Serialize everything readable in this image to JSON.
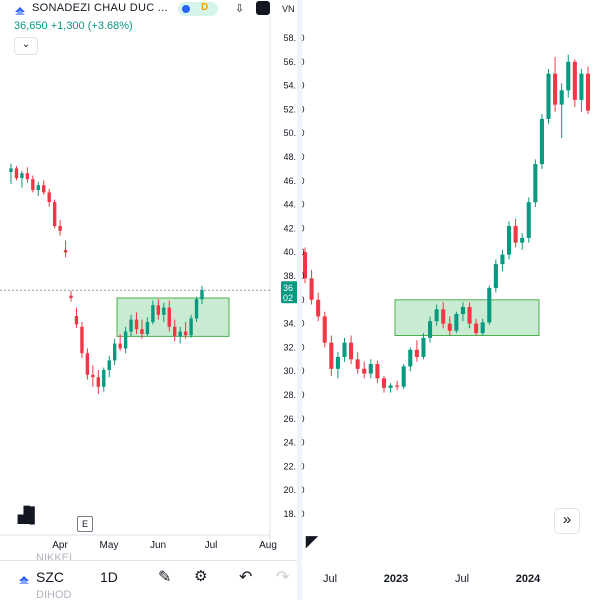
{
  "header": {
    "title": "SONADEZI CHAU DUC ...",
    "last": "36,650",
    "change": "+1,300 (+3.68%)",
    "chip_label": "D",
    "currency": "VN",
    "collapse_icon": "chevron-down-icon",
    "logo_icon": "stock-logo-icon",
    "download_icon": "download-icon",
    "market_icon": "market-status-icon"
  },
  "toolbar": {
    "symbol": "SZC",
    "interval": "1D",
    "draw_icon": "pencil-icon",
    "settings_icon": "sliders-icon",
    "undo_icon": "undo-icon",
    "redo_icon": "redo-icon"
  },
  "ghost_text": [
    "NIKKEI",
    "DIHOD"
  ],
  "markers": {
    "earnings": "E",
    "scroll_icon": "double-chevron-right-icon",
    "price_tag_top": "36",
    "price_tag_bottom": "02"
  },
  "colors": {
    "up": "#089981",
    "down": "#f23645",
    "zone_fill": "#b7e4c2",
    "zone_stroke": "#4caf50",
    "grid": "#e0e3eb"
  },
  "chart_data": [
    {
      "type": "candlestick",
      "title": "",
      "x_ticks": [
        "Apr",
        "May",
        "Jun",
        "Jul",
        "Aug"
      ],
      "y_ticks": [],
      "ylim": [
        18,
        59
      ],
      "zone": {
        "from": "May",
        "to": "Jul",
        "low": 32.8,
        "high": 36.0
      },
      "ohlc": [
        [
          46.5,
          47.2,
          45.5,
          46.8
        ],
        [
          46.8,
          47.0,
          45.8,
          46.0
        ],
        [
          46.0,
          46.6,
          45.2,
          46.4
        ],
        [
          46.4,
          46.9,
          45.6,
          45.9
        ],
        [
          45.9,
          46.2,
          44.8,
          45.0
        ],
        [
          45.0,
          45.7,
          44.5,
          45.4
        ],
        [
          45.4,
          45.8,
          44.6,
          44.8
        ],
        [
          44.8,
          45.1,
          43.6,
          44.0
        ],
        [
          44.0,
          44.2,
          41.8,
          42.0
        ],
        [
          42.0,
          42.5,
          41.2,
          41.6
        ],
        [
          40.0,
          40.8,
          39.4,
          39.8
        ],
        [
          36.2,
          36.6,
          35.7,
          36.0
        ],
        [
          34.5,
          35.2,
          33.5,
          33.8
        ],
        [
          33.6,
          34.0,
          31.0,
          31.4
        ],
        [
          31.4,
          31.8,
          29.2,
          29.6
        ],
        [
          29.6,
          30.4,
          28.6,
          29.4
        ],
        [
          29.4,
          30.0,
          28.0,
          28.6
        ],
        [
          28.6,
          30.2,
          28.2,
          30.0
        ],
        [
          30.0,
          31.2,
          29.4,
          30.8
        ],
        [
          30.8,
          32.6,
          30.4,
          32.2
        ],
        [
          32.2,
          33.0,
          31.6,
          31.8
        ],
        [
          31.8,
          33.6,
          31.4,
          33.2
        ],
        [
          33.2,
          34.6,
          32.8,
          34.2
        ],
        [
          34.2,
          34.8,
          33.0,
          33.4
        ],
        [
          33.4,
          34.2,
          32.6,
          33.0
        ],
        [
          33.0,
          34.4,
          32.8,
          34.0
        ],
        [
          34.0,
          35.8,
          33.8,
          35.4
        ],
        [
          35.4,
          35.9,
          34.2,
          34.6
        ],
        [
          34.6,
          35.6,
          34.0,
          35.2
        ],
        [
          35.2,
          35.8,
          33.2,
          33.6
        ],
        [
          33.6,
          34.2,
          32.4,
          32.8
        ],
        [
          32.8,
          33.6,
          32.2,
          33.2
        ],
        [
          33.2,
          34.0,
          32.6,
          32.9
        ],
        [
          32.9,
          34.6,
          32.7,
          34.3
        ],
        [
          34.3,
          36.1,
          34.0,
          35.9
        ],
        [
          35.9,
          37.0,
          35.5,
          36.65
        ]
      ]
    },
    {
      "type": "candlestick",
      "title": "",
      "x_ticks": [
        "Jul",
        "2023",
        "Jul",
        "2024"
      ],
      "y_ticks": [
        18,
        20,
        22,
        24,
        26,
        28,
        30,
        32,
        34,
        36,
        38,
        40,
        42,
        44,
        46,
        48,
        50,
        52,
        54,
        56,
        58
      ],
      "ylim": [
        17,
        59.5
      ],
      "zone": {
        "from": "Apr 2023",
        "to": "Nov 2023",
        "low": 33.0,
        "high": 36.0
      },
      "ohlc": [
        [
          40.0,
          40.4,
          37.4,
          37.8
        ],
        [
          37.8,
          38.5,
          35.6,
          36.0
        ],
        [
          36.0,
          36.6,
          34.2,
          34.6
        ],
        [
          34.6,
          35.0,
          32.0,
          32.4
        ],
        [
          32.4,
          33.0,
          29.6,
          30.2
        ],
        [
          30.2,
          31.6,
          29.4,
          31.2
        ],
        [
          31.2,
          32.8,
          30.8,
          32.4
        ],
        [
          32.4,
          33.0,
          30.6,
          31.0
        ],
        [
          31.0,
          31.6,
          29.8,
          30.2
        ],
        [
          30.2,
          30.8,
          29.4,
          29.8
        ],
        [
          29.8,
          31.0,
          29.4,
          30.6
        ],
        [
          30.6,
          30.9,
          29.0,
          29.4
        ],
        [
          29.4,
          29.6,
          28.2,
          28.6
        ],
        [
          28.6,
          29.0,
          28.2,
          28.8
        ],
        [
          28.8,
          29.2,
          28.4,
          28.7
        ],
        [
          28.7,
          30.6,
          28.5,
          30.4
        ],
        [
          30.4,
          32.0,
          30.0,
          31.8
        ],
        [
          31.8,
          32.6,
          30.8,
          31.2
        ],
        [
          31.2,
          33.2,
          31.0,
          32.8
        ],
        [
          32.8,
          34.6,
          32.4,
          34.2
        ],
        [
          34.2,
          35.6,
          33.8,
          35.2
        ],
        [
          35.2,
          35.8,
          33.6,
          34.0
        ],
        [
          34.0,
          34.6,
          33.0,
          33.4
        ],
        [
          33.4,
          35.0,
          33.2,
          34.8
        ],
        [
          34.8,
          35.8,
          34.2,
          35.4
        ],
        [
          35.4,
          35.8,
          33.6,
          34.0
        ],
        [
          34.0,
          34.4,
          33.0,
          33.2
        ],
        [
          33.2,
          34.4,
          33.0,
          34.1
        ],
        [
          34.1,
          37.2,
          33.9,
          37.0
        ],
        [
          37.0,
          39.4,
          36.6,
          39.0
        ],
        [
          39.0,
          40.2,
          38.4,
          39.8
        ],
        [
          39.8,
          42.6,
          39.4,
          42.2
        ],
        [
          42.2,
          42.8,
          40.4,
          40.8
        ],
        [
          40.8,
          41.6,
          40.2,
          41.2
        ],
        [
          41.2,
          44.6,
          40.8,
          44.2
        ],
        [
          44.2,
          47.8,
          43.8,
          47.4
        ],
        [
          47.4,
          51.6,
          47.0,
          51.2
        ],
        [
          51.2,
          55.4,
          50.8,
          55.0
        ],
        [
          55.0,
          56.4,
          51.8,
          52.4
        ],
        [
          52.4,
          54.2,
          49.6,
          53.6
        ],
        [
          53.6,
          56.6,
          53.0,
          56.0
        ],
        [
          56.0,
          56.2,
          52.2,
          52.8
        ],
        [
          52.8,
          55.4,
          51.8,
          55.0
        ],
        [
          55.0,
          55.6,
          51.6,
          51.9
        ]
      ]
    }
  ]
}
